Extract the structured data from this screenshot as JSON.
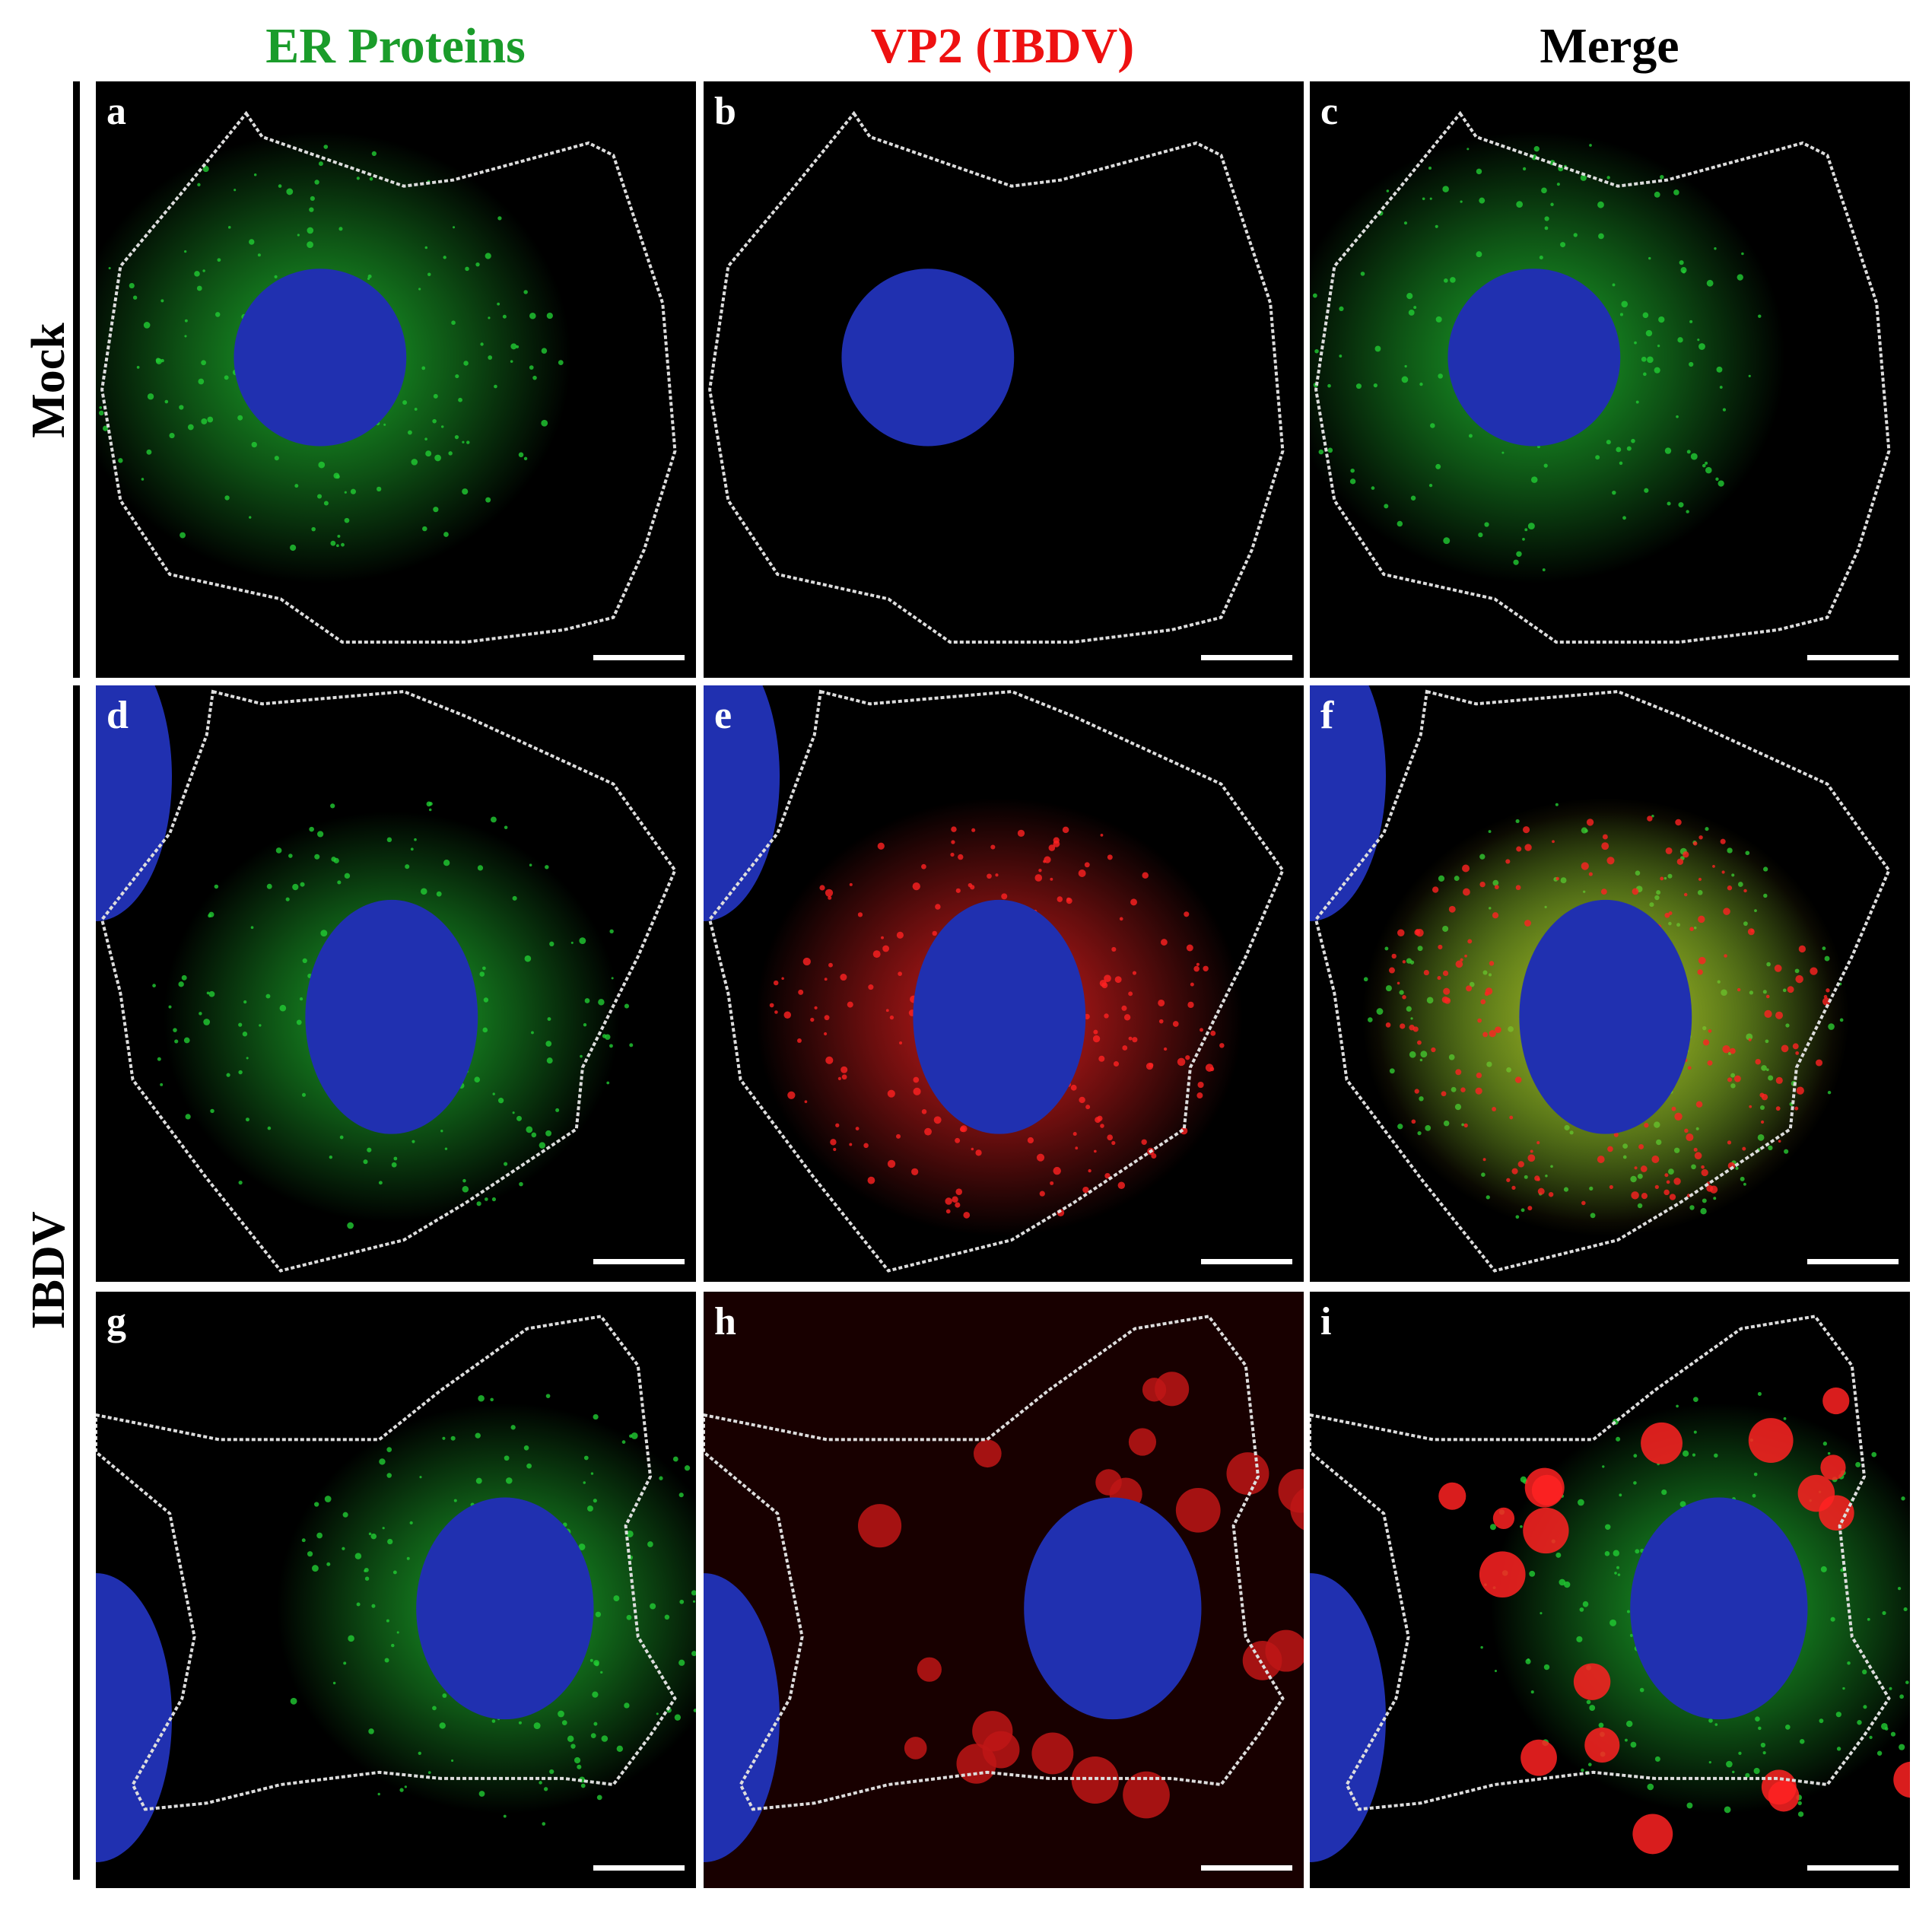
{
  "columns": [
    {
      "label": "ER Proteins",
      "color": "#1a9c2a"
    },
    {
      "label": "VP2 (IBDV)",
      "color": "#ee1111"
    },
    {
      "label": "Merge",
      "color": "#000000"
    }
  ],
  "rows": [
    {
      "label": "Mock"
    },
    {
      "label": "IBDV"
    }
  ],
  "panels": [
    {
      "letter": "a",
      "channel": "green",
      "condition": "mock"
    },
    {
      "letter": "b",
      "channel": "red",
      "condition": "mock"
    },
    {
      "letter": "c",
      "channel": "merge",
      "condition": "mock"
    },
    {
      "letter": "d",
      "channel": "green",
      "condition": "ibdv-diffuse"
    },
    {
      "letter": "e",
      "channel": "red",
      "condition": "ibdv-diffuse"
    },
    {
      "letter": "f",
      "channel": "merge",
      "condition": "ibdv-diffuse"
    },
    {
      "letter": "g",
      "channel": "green",
      "condition": "ibdv-puncta"
    },
    {
      "letter": "h",
      "channel": "red",
      "condition": "ibdv-puncta"
    },
    {
      "letter": "i",
      "channel": "merge",
      "condition": "ibdv-puncta"
    }
  ],
  "colors": {
    "er": "#22cc33",
    "vp2": "#ff2222",
    "nucleus": "#2030b0",
    "outline": "#dddddd"
  }
}
